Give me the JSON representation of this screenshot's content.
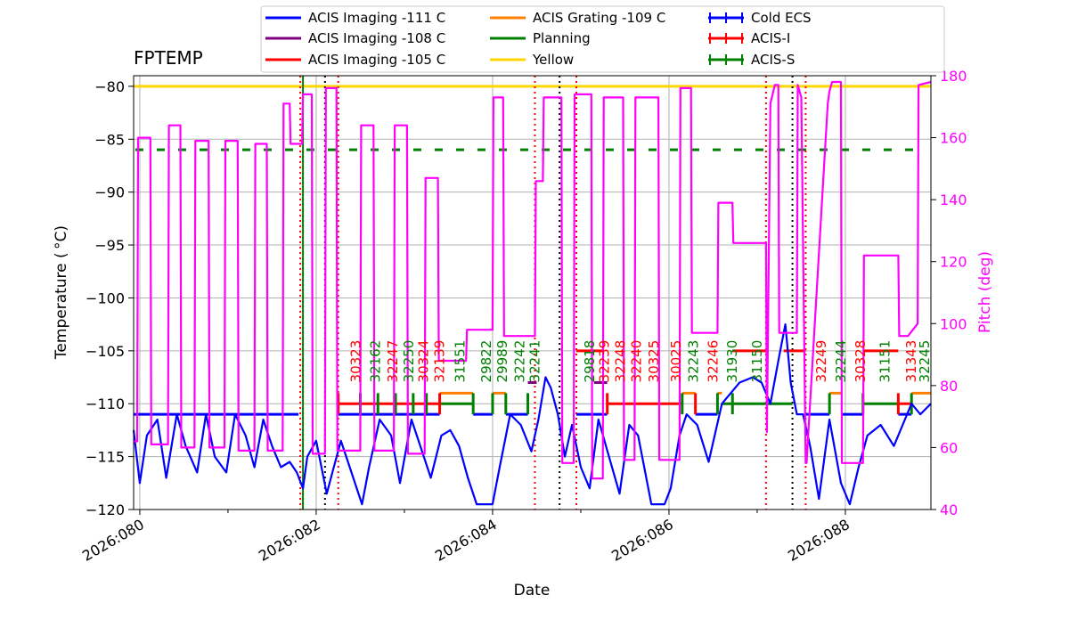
{
  "chart_data": {
    "type": "line",
    "title": "FPTEMP",
    "xlabel": "Date",
    "ylabel": "Temperature ($^\\circ$C)",
    "ylabel_display": "Temperature ( °C)",
    "y2label": "Pitch (deg)",
    "xlim": [
      79.93,
      88.97
    ],
    "ylim": [
      -120,
      -79
    ],
    "y2lim": [
      40,
      180
    ],
    "x_ticks": [
      {
        "value": 80,
        "label": "2026:080"
      },
      {
        "value": 82,
        "label": "2026:082"
      },
      {
        "value": 84,
        "label": "2026:084"
      },
      {
        "value": 86,
        "label": "2026:086"
      },
      {
        "value": 88,
        "label": "2026:088"
      }
    ],
    "y_ticks": [
      -120,
      -115,
      -110,
      -105,
      -100,
      -95,
      -90,
      -85,
      -80
    ],
    "y_tick_labels": [
      "−120",
      "−115",
      "−110",
      "−105",
      "−100",
      "−95",
      "−90",
      "−85",
      "−80"
    ],
    "y2_ticks": [
      40,
      60,
      80,
      100,
      120,
      140,
      160,
      180
    ],
    "y2_tick_labels": [
      "40",
      "60",
      "80",
      "100",
      "120",
      "140",
      "160",
      "180"
    ],
    "grid": true,
    "legend_position": "top, above plot",
    "legend": [
      {
        "label": "ACIS Imaging -111 C",
        "color": "#0000ff",
        "kind": "line"
      },
      {
        "label": "ACIS Imaging -108 C",
        "color": "#800080",
        "kind": "line"
      },
      {
        "label": "ACIS Imaging -105 C",
        "color": "#ff0000",
        "kind": "line"
      },
      {
        "label": "ACIS Grating -109 C",
        "color": "#ff8000",
        "kind": "line"
      },
      {
        "label": "Planning",
        "color": "#008000",
        "kind": "line"
      },
      {
        "label": "Yellow",
        "color": "#ffd700",
        "kind": "line"
      },
      {
        "label": "Cold ECS",
        "color": "#0000ff",
        "kind": "errorbar"
      },
      {
        "label": "ACIS-I",
        "color": "#ff0000",
        "kind": "errorbar"
      },
      {
        "label": "ACIS-S",
        "color": "#008000",
        "kind": "errorbar"
      }
    ],
    "reference_lines": [
      {
        "name": "Yellow",
        "y": -80,
        "color": "#ffd700",
        "style": "solid"
      },
      {
        "name": "Planning",
        "y": -86,
        "color": "#008000",
        "style": "dashed",
        "x_range": [
          79.95,
          88.8
        ]
      }
    ],
    "vlines": [
      {
        "x": 81.85,
        "color": "#008000",
        "style": "solid"
      },
      {
        "x": 81.82,
        "color": "#ff0000",
        "style": "dotted"
      },
      {
        "x": 82.1,
        "color": "#000000",
        "style": "dotted"
      },
      {
        "x": 82.25,
        "color": "#ff0000",
        "style": "dotted"
      },
      {
        "x": 84.48,
        "color": "#ff0000",
        "style": "dotted"
      },
      {
        "x": 84.76,
        "color": "#000000",
        "style": "dotted"
      },
      {
        "x": 84.95,
        "color": "#ff0000",
        "style": "dotted"
      },
      {
        "x": 87.1,
        "color": "#ff0000",
        "style": "dotted"
      },
      {
        "x": 87.4,
        "color": "#000000",
        "style": "dotted"
      },
      {
        "x": 87.55,
        "color": "#ff0000",
        "style": "dotted"
      }
    ],
    "series": [
      {
        "name": "FPTEMP",
        "axis": "left",
        "color": "#0000ff",
        "x": [
          79.93,
          80.0,
          80.08,
          80.2,
          80.3,
          80.42,
          80.52,
          80.65,
          80.75,
          80.85,
          80.98,
          81.08,
          81.2,
          81.3,
          81.4,
          81.5,
          81.6,
          81.7,
          81.78,
          81.85,
          81.9,
          82.0,
          82.12,
          82.2,
          82.28,
          82.38,
          82.52,
          82.6,
          82.72,
          82.85,
          82.95,
          83.08,
          83.18,
          83.3,
          83.42,
          83.52,
          83.62,
          83.72,
          83.82,
          83.9,
          84.0,
          84.08,
          84.2,
          84.32,
          84.44,
          84.52,
          84.6,
          84.66,
          84.74,
          84.82,
          84.9,
          85.0,
          85.1,
          85.2,
          85.32,
          85.44,
          85.55,
          85.65,
          85.8,
          85.88,
          85.95,
          86.02,
          86.12,
          86.2,
          86.32,
          86.45,
          86.6,
          86.8,
          86.95,
          87.05,
          87.15,
          87.25,
          87.32,
          87.38,
          87.45,
          87.52,
          87.6,
          87.7,
          87.82,
          87.95,
          88.05,
          88.15,
          88.25,
          88.4,
          88.55,
          88.65,
          88.75,
          88.85,
          88.97
        ],
        "y": [
          -112.5,
          -117.5,
          -113,
          -111.5,
          -117,
          -111,
          -114,
          -116.5,
          -111,
          -115,
          -116.5,
          -111,
          -113,
          -116,
          -111.5,
          -114,
          -116,
          -115.5,
          -116.5,
          -118,
          -115,
          -113.5,
          -118.5,
          -116,
          -113.5,
          -116,
          -119.5,
          -116,
          -111.5,
          -113,
          -117.5,
          -111.5,
          -114,
          -117,
          -113,
          -112.5,
          -114,
          -117,
          -119.5,
          -119.5,
          -119.5,
          -116,
          -111,
          -112,
          -114.5,
          -111.5,
          -107.5,
          -108.5,
          -111,
          -115,
          -112,
          -116,
          -118,
          -111.5,
          -115,
          -118.5,
          -112,
          -113,
          -119.5,
          -119.5,
          -119.5,
          -118,
          -113,
          -111,
          -112,
          -115.5,
          -110,
          -108,
          -107.5,
          -108,
          -110,
          -105.5,
          -102.5,
          -108,
          -111,
          -111,
          -114,
          -119,
          -111.5,
          -117.5,
          -119.5,
          -116,
          -113,
          -112,
          -114,
          -112,
          -110,
          -111,
          -110
        ]
      },
      {
        "name": "Pitch",
        "axis": "right",
        "color": "#ff00ff",
        "x": [
          79.93,
          79.97,
          79.98,
          80.12,
          80.13,
          80.32,
          80.33,
          80.46,
          80.47,
          80.62,
          80.63,
          80.78,
          80.79,
          80.96,
          80.97,
          81.11,
          81.12,
          81.3,
          81.31,
          81.44,
          81.45,
          81.62,
          81.63,
          81.7,
          81.71,
          81.84,
          81.85,
          81.95,
          81.96,
          82.1,
          82.11,
          82.23,
          82.24,
          82.5,
          82.51,
          82.65,
          82.66,
          82.88,
          82.89,
          83.03,
          83.04,
          83.23,
          83.24,
          83.38,
          83.39,
          83.7,
          83.71,
          84.0,
          84.01,
          84.12,
          84.13,
          84.4,
          84.41,
          84.48,
          84.49,
          84.57,
          84.58,
          84.78,
          84.79,
          84.92,
          84.93,
          85.12,
          85.13,
          85.25,
          85.26,
          85.48,
          85.49,
          85.61,
          85.62,
          85.88,
          85.89,
          86.12,
          86.13,
          86.25,
          86.26,
          86.55,
          86.56,
          86.72,
          86.73,
          87.1,
          87.11,
          87.15,
          87.2,
          87.24,
          87.25,
          87.45,
          87.46,
          87.5,
          87.55,
          87.56,
          87.8,
          87.82,
          87.85,
          87.95,
          87.96,
          88.2,
          88.21,
          88.6,
          88.61,
          88.7,
          88.71,
          88.82,
          88.83,
          88.97
        ],
        "y": [
          62,
          62,
          160,
          160,
          61,
          61,
          164,
          164,
          60,
          60,
          159,
          159,
          60,
          60,
          159,
          159,
          59,
          59,
          158,
          158,
          59,
          59,
          171,
          171,
          158,
          158,
          174,
          174,
          58,
          58,
          176,
          176,
          59,
          59,
          164,
          164,
          59,
          59,
          164,
          164,
          58,
          58,
          147,
          147,
          88,
          88,
          98,
          98,
          173,
          173,
          96,
          96,
          96,
          96,
          146,
          146,
          173,
          173,
          55,
          55,
          174,
          174,
          50,
          50,
          173,
          173,
          56,
          56,
          173,
          173,
          56,
          56,
          176,
          176,
          97,
          97,
          139,
          139,
          126,
          126,
          65,
          171,
          177,
          177,
          97,
          97,
          177,
          173,
          55,
          55,
          171,
          175,
          178,
          178,
          55,
          55,
          122,
          122,
          96,
          96,
          96,
          100,
          177,
          178
        ]
      }
    ],
    "state_segments": [
      {
        "mode": "ACIS Imaging -111 C",
        "color": "#0000ff",
        "x0": 79.93,
        "x1": 81.8,
        "y": -111
      },
      {
        "mode": "ACIS Imaging -111 C",
        "color": "#0000ff",
        "x0": 82.25,
        "x1": 83.4,
        "y": -111
      },
      {
        "mode": "ACIS Imaging -105 C",
        "color": "#ff0000",
        "x0": 82.25,
        "x1": 83.4,
        "y": -110
      },
      {
        "mode": "ACIS Grating -109 C",
        "color": "#ff8000",
        "x0": 83.4,
        "x1": 83.78,
        "y": -109
      },
      {
        "mode": "Planning",
        "color": "#008000",
        "x0": 83.4,
        "x1": 83.78,
        "y": -110
      },
      {
        "mode": "ACIS Imaging -111 C",
        "color": "#0000ff",
        "x0": 83.78,
        "x1": 84.0,
        "y": -111
      },
      {
        "mode": "ACIS Grating -109 C",
        "color": "#ff8000",
        "x0": 84.0,
        "x1": 84.15,
        "y": -109
      },
      {
        "mode": "ACIS Imaging -111 C",
        "color": "#0000ff",
        "x0": 84.15,
        "x1": 84.4,
        "y": -111
      },
      {
        "mode": "ACIS Imaging -108 C",
        "color": "#800080",
        "x0": 84.4,
        "x1": 84.5,
        "y": -108
      },
      {
        "mode": "ACIS Imaging -105 C",
        "color": "#ff0000",
        "x0": 84.95,
        "x1": 85.25,
        "y": -105
      },
      {
        "mode": "ACIS Imaging -108 C",
        "color": "#800080",
        "x0": 85.15,
        "x1": 85.3,
        "y": -108
      },
      {
        "mode": "ACIS Imaging -111 C",
        "color": "#0000ff",
        "x0": 84.95,
        "x1": 85.3,
        "y": -111
      },
      {
        "mode": "ACIS Imaging -105 C",
        "color": "#ff0000",
        "x0": 85.3,
        "x1": 86.15,
        "y": -110
      },
      {
        "mode": "ACIS Grating -109 C",
        "color": "#ff8000",
        "x0": 86.15,
        "x1": 86.3,
        "y": -109
      },
      {
        "mode": "ACIS Imaging -111 C",
        "color": "#0000ff",
        "x0": 86.3,
        "x1": 86.55,
        "y": -111
      },
      {
        "mode": "ACIS Grating -109 C",
        "color": "#ff8000",
        "x0": 86.55,
        "x1": 86.6,
        "y": -109
      },
      {
        "mode": "ACIS Imaging -105 C",
        "color": "#ff0000",
        "x0": 86.72,
        "x1": 87.1,
        "y": -105
      },
      {
        "mode": "Planning",
        "color": "#008000",
        "x0": 86.6,
        "x1": 87.4,
        "y": -110
      },
      {
        "mode": "ACIS Imaging -105 C",
        "color": "#ff0000",
        "x0": 87.3,
        "x1": 87.55,
        "y": -105
      },
      {
        "mode": "ACIS Imaging -111 C",
        "color": "#0000ff",
        "x0": 87.55,
        "x1": 87.82,
        "y": -111
      },
      {
        "mode": "ACIS Grating -109 C",
        "color": "#ff8000",
        "x0": 87.82,
        "x1": 87.95,
        "y": -109
      },
      {
        "mode": "ACIS Imaging -111 C",
        "color": "#0000ff",
        "x0": 87.95,
        "x1": 88.2,
        "y": -111
      },
      {
        "mode": "ACIS Imaging -105 C",
        "color": "#ff0000",
        "x0": 88.2,
        "x1": 88.6,
        "y": -105
      },
      {
        "mode": "Planning",
        "color": "#008000",
        "x0": 88.2,
        "x1": 88.6,
        "y": -110
      },
      {
        "mode": "ACIS Imaging -111 C",
        "color": "#0000ff",
        "x0": 88.6,
        "x1": 88.75,
        "y": -111
      },
      {
        "mode": "ACIS Imaging -105 C",
        "color": "#ff0000",
        "x0": 88.6,
        "x1": 88.75,
        "y": -110
      },
      {
        "mode": "ACIS Grating -109 C",
        "color": "#ff8000",
        "x0": 88.75,
        "x1": 88.97,
        "y": -109
      }
    ],
    "ticks_marks": [
      {
        "x": 82.25,
        "color": "#ff0000"
      },
      {
        "x": 82.5,
        "color": "#008000"
      },
      {
        "x": 82.7,
        "color": "#008000"
      },
      {
        "x": 82.9,
        "color": "#008000"
      },
      {
        "x": 83.1,
        "color": "#008000"
      },
      {
        "x": 83.25,
        "color": "#008000"
      },
      {
        "x": 83.4,
        "color": "#ff0000"
      },
      {
        "x": 83.78,
        "color": "#008000"
      },
      {
        "x": 84.0,
        "color": "#008000"
      },
      {
        "x": 84.15,
        "color": "#008000"
      },
      {
        "x": 84.4,
        "color": "#008000"
      },
      {
        "x": 85.3,
        "color": "#ff0000"
      },
      {
        "x": 86.15,
        "color": "#008000"
      },
      {
        "x": 86.3,
        "color": "#ff0000"
      },
      {
        "x": 86.55,
        "color": "#008000"
      },
      {
        "x": 86.72,
        "color": "#008000"
      },
      {
        "x": 87.82,
        "color": "#008000"
      },
      {
        "x": 88.2,
        "color": "#008000"
      },
      {
        "x": 88.6,
        "color": "#ff0000"
      },
      {
        "x": 88.75,
        "color": "#008000"
      }
    ],
    "obsid_annotations": [
      {
        "label": "30323",
        "x": 82.45,
        "color": "#ff0000"
      },
      {
        "label": "32162",
        "x": 82.67,
        "color": "#008000"
      },
      {
        "label": "32247",
        "x": 82.87,
        "color": "#ff0000"
      },
      {
        "label": "32250",
        "x": 83.05,
        "color": "#008000"
      },
      {
        "label": "30324",
        "x": 83.22,
        "color": "#ff0000"
      },
      {
        "label": "32139",
        "x": 83.4,
        "color": "#ff0000"
      },
      {
        "label": "31551",
        "x": 83.63,
        "color": "#008000"
      },
      {
        "label": "29822",
        "x": 83.93,
        "color": "#008000"
      },
      {
        "label": "29989",
        "x": 84.11,
        "color": "#008000"
      },
      {
        "label": "32242",
        "x": 84.31,
        "color": "#008000"
      },
      {
        "label": "32241",
        "x": 84.48,
        "color": "#008000"
      },
      {
        "label": "29818",
        "x": 85.1,
        "color": "#008000"
      },
      {
        "label": "32239",
        "x": 85.27,
        "color": "#ff0000"
      },
      {
        "label": "32248",
        "x": 85.45,
        "color": "#ff0000"
      },
      {
        "label": "32240",
        "x": 85.63,
        "color": "#ff0000"
      },
      {
        "label": "30325",
        "x": 85.83,
        "color": "#ff0000"
      },
      {
        "label": "30025",
        "x": 86.08,
        "color": "#ff0000"
      },
      {
        "label": "32243",
        "x": 86.28,
        "color": "#008000"
      },
      {
        "label": "32246",
        "x": 86.5,
        "color": "#ff0000"
      },
      {
        "label": "31930",
        "x": 86.72,
        "color": "#008000"
      },
      {
        "label": "31150",
        "x": 87.0,
        "color": "#008000"
      },
      {
        "label": "32249",
        "x": 87.73,
        "color": "#ff0000"
      },
      {
        "label": "32244",
        "x": 87.95,
        "color": "#008000"
      },
      {
        "label": "30328",
        "x": 88.17,
        "color": "#ff0000"
      },
      {
        "label": "31151",
        "x": 88.45,
        "color": "#008000"
      },
      {
        "label": "31343",
        "x": 88.75,
        "color": "#ff0000"
      },
      {
        "label": "32245",
        "x": 88.9,
        "color": "#008000"
      }
    ]
  }
}
